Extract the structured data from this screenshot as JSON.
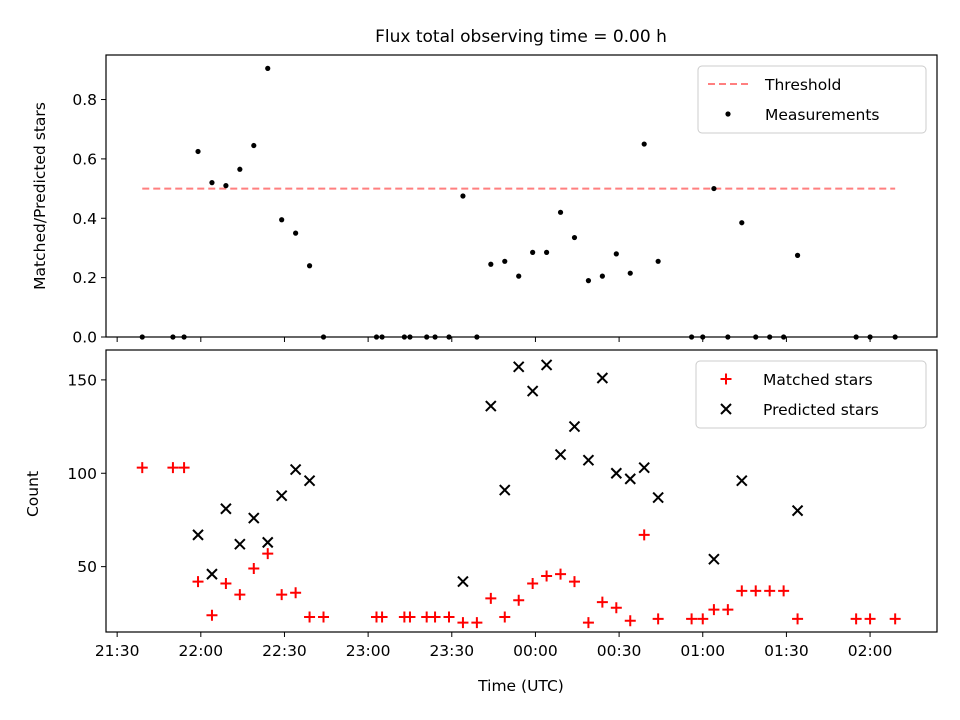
{
  "chart_data": {
    "title": "Flux total observing time = 0.00 h",
    "xlabel": "Time (UTC)",
    "x_ticks": [
      "21:30",
      "22:00",
      "22:30",
      "23:00",
      "23:30",
      "00:00",
      "00:30",
      "01:00",
      "01:30",
      "02:00"
    ],
    "xlim": [
      "21:26",
      "02:24"
    ],
    "grid": false,
    "panels": [
      {
        "type": "scatter",
        "ylabel": "Matched/Predicted stars",
        "ylim": [
          0,
          0.95
        ],
        "y_ticks": [
          "0.0",
          "0.2",
          "0.4",
          "0.6",
          "0.8"
        ],
        "legend_position": "top-right",
        "series": [
          {
            "name": "Threshold",
            "kind": "dashed-line",
            "color": "#ff7f7f",
            "points": [
              [
                "21:39",
                0.5
              ],
              [
                "02:09",
                0.5
              ]
            ]
          },
          {
            "name": "Measurements",
            "kind": "dots",
            "color": "#000000",
            "points": [
              [
                "21:39",
                0.0
              ],
              [
                "21:50",
                0.0
              ],
              [
                "21:54",
                0.0
              ],
              [
                "21:59",
                0.625
              ],
              [
                "22:04",
                0.52
              ],
              [
                "22:09",
                0.51
              ],
              [
                "22:14",
                0.565
              ],
              [
                "22:19",
                0.645
              ],
              [
                "22:24",
                0.905
              ],
              [
                "22:29",
                0.395
              ],
              [
                "22:34",
                0.35
              ],
              [
                "22:39",
                0.24
              ],
              [
                "22:44",
                0.0
              ],
              [
                "23:03",
                0.0
              ],
              [
                "23:05",
                0.0
              ],
              [
                "23:13",
                0.0
              ],
              [
                "23:15",
                0.0
              ],
              [
                "23:21",
                0.0
              ],
              [
                "23:24",
                0.0
              ],
              [
                "23:29",
                0.0
              ],
              [
                "23:34",
                0.475
              ],
              [
                "23:39",
                0.0
              ],
              [
                "23:44",
                0.245
              ],
              [
                "23:49",
                0.255
              ],
              [
                "23:54",
                0.205
              ],
              [
                "23:59",
                0.285
              ],
              [
                "00:04",
                0.285
              ],
              [
                "00:09",
                0.42
              ],
              [
                "00:14",
                0.335
              ],
              [
                "00:19",
                0.19
              ],
              [
                "00:24",
                0.205
              ],
              [
                "00:29",
                0.28
              ],
              [
                "00:34",
                0.215
              ],
              [
                "00:39",
                0.65
              ],
              [
                "00:44",
                0.255
              ],
              [
                "00:56",
                0.0
              ],
              [
                "01:00",
                0.0
              ],
              [
                "01:04",
                0.5
              ],
              [
                "01:09",
                0.0
              ],
              [
                "01:14",
                0.385
              ],
              [
                "01:19",
                0.0
              ],
              [
                "01:24",
                0.0
              ],
              [
                "01:29",
                0.0
              ],
              [
                "01:34",
                0.275
              ],
              [
                "01:55",
                0.0
              ],
              [
                "02:00",
                0.0
              ],
              [
                "02:09",
                0.0
              ]
            ]
          }
        ]
      },
      {
        "type": "scatter",
        "ylabel": "Count",
        "ylim": [
          15,
          166
        ],
        "y_ticks": [
          "50",
          "100",
          "150"
        ],
        "legend_position": "top-right",
        "series": [
          {
            "name": "Matched stars",
            "marker": "plus",
            "color": "#ff0000",
            "points": [
              [
                "21:39",
                103
              ],
              [
                "21:50",
                103
              ],
              [
                "21:54",
                103
              ],
              [
                "21:59",
                42
              ],
              [
                "22:04",
                24
              ],
              [
                "22:09",
                41
              ],
              [
                "22:14",
                35
              ],
              [
                "22:19",
                49
              ],
              [
                "22:24",
                57
              ],
              [
                "22:29",
                35
              ],
              [
                "22:34",
                36
              ],
              [
                "22:39",
                23
              ],
              [
                "22:44",
                23
              ],
              [
                "23:03",
                23
              ],
              [
                "23:05",
                23
              ],
              [
                "23:13",
                23
              ],
              [
                "23:15",
                23
              ],
              [
                "23:21",
                23
              ],
              [
                "23:24",
                23
              ],
              [
                "23:29",
                23
              ],
              [
                "23:34",
                20
              ],
              [
                "23:39",
                20
              ],
              [
                "23:44",
                33
              ],
              [
                "23:49",
                23
              ],
              [
                "23:54",
                32
              ],
              [
                "23:59",
                41
              ],
              [
                "00:04",
                45
              ],
              [
                "00:09",
                46
              ],
              [
                "00:14",
                42
              ],
              [
                "00:19",
                20
              ],
              [
                "00:24",
                31
              ],
              [
                "00:29",
                28
              ],
              [
                "00:34",
                21
              ],
              [
                "00:39",
                67
              ],
              [
                "00:44",
                22
              ],
              [
                "00:56",
                22
              ],
              [
                "01:00",
                22
              ],
              [
                "01:04",
                27
              ],
              [
                "01:09",
                27
              ],
              [
                "01:14",
                37
              ],
              [
                "01:19",
                37
              ],
              [
                "01:24",
                37
              ],
              [
                "01:29",
                37
              ],
              [
                "01:34",
                22
              ],
              [
                "01:55",
                22
              ],
              [
                "02:00",
                22
              ],
              [
                "02:09",
                22
              ]
            ]
          },
          {
            "name": "Predicted stars",
            "marker": "x",
            "color": "#000000",
            "points": [
              [
                "21:59",
                67
              ],
              [
                "22:04",
                46
              ],
              [
                "22:09",
                81
              ],
              [
                "22:14",
                62
              ],
              [
                "22:19",
                76
              ],
              [
                "22:24",
                63
              ],
              [
                "22:29",
                88
              ],
              [
                "22:34",
                102
              ],
              [
                "22:39",
                96
              ],
              [
                "23:34",
                42
              ],
              [
                "23:44",
                136
              ],
              [
                "23:49",
                91
              ],
              [
                "23:54",
                157
              ],
              [
                "23:59",
                144
              ],
              [
                "00:04",
                158
              ],
              [
                "00:09",
                110
              ],
              [
                "00:14",
                125
              ],
              [
                "00:19",
                107
              ],
              [
                "00:24",
                151
              ],
              [
                "00:29",
                100
              ],
              [
                "00:34",
                97
              ],
              [
                "00:39",
                103
              ],
              [
                "00:44",
                87
              ],
              [
                "01:04",
                54
              ],
              [
                "01:14",
                96
              ],
              [
                "01:34",
                80
              ]
            ]
          }
        ]
      }
    ]
  }
}
